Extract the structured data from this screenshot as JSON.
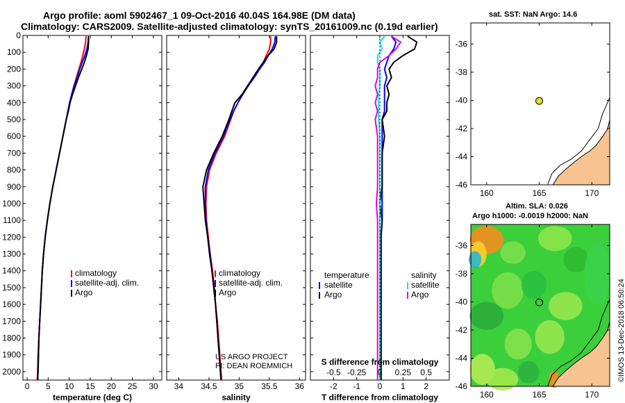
{
  "header": {
    "line1": "Argo profile: aoml 5902467_1 09-Oct-2016 40.04S 164.98E (DM data)",
    "line2": "Climatology: CARS2009. Satellite-adjusted climatology: synTS_20161009.nc (0.19d earlier)"
  },
  "colors": {
    "climatology": "#ff0000",
    "satellite": "#0000ff",
    "argo": "#000000",
    "sal_satellite": "#00e5e5",
    "sal_argo": "#e000e0"
  },
  "chart_data": [
    {
      "type": "line",
      "name": "temperature",
      "xlabel": "temperature (deg C)",
      "xlim": [
        -1,
        32
      ],
      "ylim": [
        0,
        2050
      ],
      "xticks": [
        "0",
        "5",
        "10",
        "15",
        "20",
        "25",
        "30"
      ],
      "xtick_values": [
        0,
        5,
        10,
        15,
        20,
        25,
        30
      ],
      "yticks": [
        "0",
        "100",
        "200",
        "300",
        "400",
        "500",
        "600",
        "700",
        "800",
        "900",
        "1000",
        "1100",
        "1200",
        "1300",
        "1400",
        "1500",
        "1600",
        "1700",
        "1800",
        "1900",
        "2000"
      ],
      "depth": [
        5,
        40,
        80,
        120,
        160,
        200,
        250,
        300,
        350,
        400,
        450,
        500,
        600,
        700,
        800,
        900,
        1000,
        1100,
        1200,
        1300,
        1400,
        1500,
        1600,
        1700,
        1800,
        1900,
        2000,
        2050
      ],
      "series": [
        {
          "name": "climatology",
          "color": "#ff0000",
          "x": [
            14.0,
            13.9,
            13.6,
            13.2,
            12.8,
            12.3,
            11.7,
            11.1,
            10.6,
            10.1,
            9.7,
            9.3,
            8.5,
            7.7,
            6.9,
            6.1,
            5.4,
            4.8,
            4.3,
            3.9,
            3.6,
            3.4,
            3.2,
            3.0,
            2.8,
            2.6,
            2.5,
            2.4
          ]
        },
        {
          "name": "satellite-adj. clim.",
          "color": "#0000ff",
          "x": [
            14.6,
            14.5,
            14.2,
            13.7,
            13.1,
            12.5,
            11.9,
            11.2,
            10.6,
            10.1,
            9.7,
            9.3,
            8.5,
            7.7,
            6.9,
            6.1,
            5.4,
            4.8,
            4.3,
            3.9,
            3.6,
            3.4,
            3.2,
            3.0,
            2.8,
            2.7,
            2.6,
            2.5
          ]
        },
        {
          "name": "Argo",
          "color": "#000000",
          "x": [
            14.6,
            14.6,
            14.5,
            14.1,
            13.6,
            13.0,
            12.2,
            11.5,
            10.8,
            10.2,
            9.8,
            9.3,
            8.5,
            7.7,
            6.9,
            6.1,
            5.4,
            4.8,
            4.3,
            3.9,
            3.6,
            3.4,
            3.2,
            3.0,
            2.8,
            2.7,
            2.6,
            2.5
          ]
        }
      ],
      "legend": [
        "climatology",
        "satellite-adj. clim.",
        "Argo"
      ]
    },
    {
      "type": "line",
      "name": "salinity",
      "xlabel": "salinity",
      "xlim": [
        33.8,
        36.1
      ],
      "ylim": [
        0,
        2050
      ],
      "xticks": [
        "34",
        "34.5",
        "35",
        "35.5",
        "36"
      ],
      "xtick_values": [
        34,
        34.5,
        35,
        35.5,
        36
      ],
      "depth": [
        5,
        40,
        80,
        120,
        160,
        200,
        250,
        300,
        350,
        400,
        450,
        500,
        600,
        700,
        800,
        900,
        1000,
        1100,
        1200,
        1300,
        1400,
        1500,
        1600,
        1700,
        1800,
        1900,
        2000,
        2050
      ],
      "series": [
        {
          "name": "climatology",
          "color": "#ff0000",
          "x": [
            35.52,
            35.52,
            35.5,
            35.45,
            35.4,
            35.33,
            35.24,
            35.15,
            35.06,
            34.98,
            34.91,
            34.86,
            34.76,
            34.62,
            34.51,
            34.46,
            34.45,
            34.46,
            34.49,
            34.52,
            34.56,
            34.59,
            34.61,
            34.64,
            34.66,
            34.68,
            34.7,
            34.71
          ]
        },
        {
          "name": "satellite-adj. clim.",
          "color": "#0000ff",
          "x": [
            35.6,
            35.59,
            35.55,
            35.48,
            35.42,
            35.34,
            35.25,
            35.15,
            35.06,
            34.98,
            34.91,
            34.85,
            34.74,
            34.6,
            34.49,
            34.44,
            34.44,
            34.45,
            34.48,
            34.52,
            34.55,
            34.58,
            34.61,
            34.63,
            34.65,
            34.67,
            34.69,
            34.7
          ]
        },
        {
          "name": "Argo",
          "color": "#000000",
          "x": [
            35.62,
            35.62,
            35.58,
            35.48,
            35.4,
            35.32,
            35.23,
            35.14,
            35.05,
            34.93,
            34.88,
            34.83,
            34.72,
            34.58,
            34.46,
            34.4,
            34.42,
            34.44,
            34.48,
            34.51,
            34.55,
            34.58,
            34.61,
            34.63,
            34.65,
            34.67,
            34.69,
            34.7
          ]
        }
      ],
      "legend": [
        "climatology",
        "satellite-adj. clim.",
        "Argo"
      ],
      "annotation": [
        "US ARGO PROJECT",
        "PI: DEAN ROEMMICH"
      ]
    },
    {
      "type": "line",
      "name": "difference",
      "xlabel": "T difference from climatology",
      "xlabel2": "S difference from climatology",
      "xlim": [
        -3,
        3
      ],
      "ylim": [
        0,
        2050
      ],
      "xticks": [
        "-2",
        "-1",
        "0",
        "1",
        "2"
      ],
      "xtick_values": [
        -2,
        -1,
        0,
        1,
        2
      ],
      "sticks": [
        "-0.5",
        "-0.25",
        "0",
        "0.25",
        "0.5"
      ],
      "stick_values": [
        -2,
        -1,
        0,
        1,
        2
      ],
      "depth": [
        5,
        40,
        80,
        120,
        160,
        200,
        250,
        300,
        350,
        400,
        450,
        500,
        600,
        700,
        800,
        900,
        1000,
        1100,
        1200,
        1300,
        1400,
        1500,
        1600,
        1700,
        1800,
        1900,
        2000,
        2050
      ],
      "series": [
        {
          "name": "temperature satellite",
          "color": "#0000ff",
          "x": [
            0.5,
            0.7,
            0.6,
            0.4,
            0.3,
            0.2,
            0.3,
            0.2,
            0.2,
            0.2,
            0.2,
            0.1,
            0.1,
            0.1,
            0.1,
            0.1,
            0.1,
            0.1,
            0.05,
            0.05,
            0.05,
            0.05,
            0.05,
            0.05,
            0.05,
            0.05,
            0.05,
            0.05
          ]
        },
        {
          "name": "temperature Argo",
          "color": "#000000",
          "x": [
            1.2,
            1.6,
            1.5,
            1.0,
            0.6,
            0.4,
            0.5,
            0.3,
            0.4,
            0.3,
            0.3,
            0.1,
            0.2,
            0.1,
            0.1,
            0.1,
            0.0,
            0.1,
            0.05,
            0.05,
            0.05,
            0.05,
            0.05,
            0.05,
            0.05,
            0.05,
            0.05,
            0.05
          ]
        },
        {
          "name": "salinity satellite",
          "color": "#00e5e5",
          "x": [
            0.2,
            0.0,
            0.1,
            -0.1,
            -0.1,
            0.0,
            0.0,
            0.0,
            -0.05,
            -0.05,
            -0.05,
            -0.05,
            0.0,
            0.0,
            0.0,
            0.0,
            0.0,
            0.0,
            0.0,
            0.0,
            0.0,
            0.0,
            0.0,
            0.0,
            0.0,
            0.0,
            0.0,
            0.0
          ]
        },
        {
          "name": "salinity Argo",
          "color": "#e000e0",
          "x": [
            0.5,
            0.9,
            0.7,
            0.4,
            0.0,
            -0.1,
            -0.1,
            -0.2,
            -0.1,
            -0.2,
            -0.1,
            -0.2,
            -0.1,
            -0.1,
            -0.1,
            -0.1,
            -0.15,
            -0.1,
            -0.1,
            -0.1,
            -0.1,
            -0.1,
            -0.1,
            -0.1,
            -0.1,
            -0.1,
            -0.1,
            -0.1
          ]
        }
      ],
      "legend_left_title": "temperature",
      "legend_right_title": "salinity",
      "legend_left": [
        "satellite",
        "Argo"
      ],
      "legend_right": [
        "satellite",
        "Argo"
      ]
    }
  ],
  "maps": {
    "sst": {
      "title": "sat. SST: NaN Argo: 14.6",
      "lat_ticks": [
        "-36",
        "-38",
        "-40",
        "-42",
        "-44",
        "-46"
      ],
      "lon_ticks": [
        "160",
        "165",
        "170"
      ],
      "point": {
        "lon": 165,
        "lat": -40.04
      }
    },
    "sla": {
      "title1": "Altim. SLA: 0.026",
      "title2": "Argo h1000: -0.0019 h2000: NaN",
      "lat_ticks": [
        "-36",
        "-38",
        "-40",
        "-42",
        "-44",
        "-46"
      ],
      "lon_ticks": [
        "160",
        "165",
        "170"
      ],
      "point": {
        "lon": 165,
        "lat": -40.04
      }
    }
  },
  "credit": "©IMOS 13-Dec-2018 06:50:24"
}
